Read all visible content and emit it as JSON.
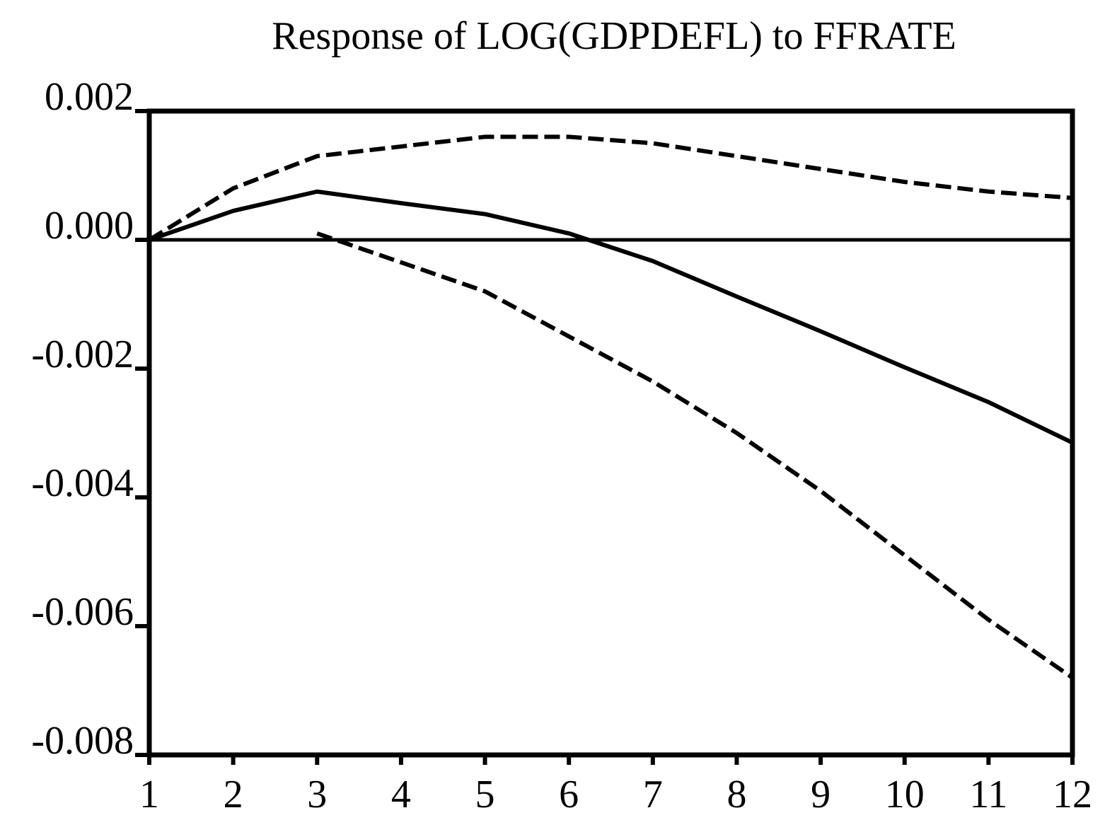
{
  "chart_data": {
    "type": "line",
    "title": "Response of LOG(GDPDEFL) to FFRATE",
    "xlabel": "",
    "ylabel": "",
    "x": [
      1,
      2,
      3,
      4,
      5,
      6,
      7,
      8,
      9,
      10,
      11,
      12
    ],
    "x_tick_labels": [
      "1",
      "2",
      "3",
      "4",
      "5",
      "6",
      "7",
      "8",
      "9",
      "10",
      "11",
      "12"
    ],
    "xlim": [
      1,
      12
    ],
    "y_tick_values": [
      0.002,
      0.0,
      -0.002,
      -0.004,
      -0.006,
      -0.008
    ],
    "y_tick_labels": [
      "0.002",
      "0.000",
      "-0.002",
      "-0.004",
      "-0.006",
      "-0.008"
    ],
    "ylim": [
      -0.008,
      0.002
    ],
    "grid": false,
    "legend": "none",
    "zero_line": 0.0,
    "series": [
      {
        "style": "solid",
        "color": "#000000",
        "values": [
          0.0,
          0.00045,
          0.00075,
          0.00057,
          0.0004,
          0.0001,
          -0.00033,
          -0.00088,
          -0.00142,
          -0.00198,
          -0.00252,
          -0.00315
        ]
      },
      {
        "style": "dashed",
        "color": "#000000",
        "values": [
          0.0,
          0.0008,
          0.0013,
          0.00145,
          0.0016,
          0.0016,
          0.0015,
          0.0013,
          0.0011,
          0.0009,
          0.00075,
          0.00065
        ]
      },
      {
        "style": "dashed",
        "color": "#000000",
        "values": [
          null,
          null,
          0.0001,
          -0.00035,
          -0.0008,
          -0.0015,
          -0.0022,
          -0.003,
          -0.0039,
          -0.0049,
          -0.0059,
          -0.0068
        ]
      }
    ]
  }
}
